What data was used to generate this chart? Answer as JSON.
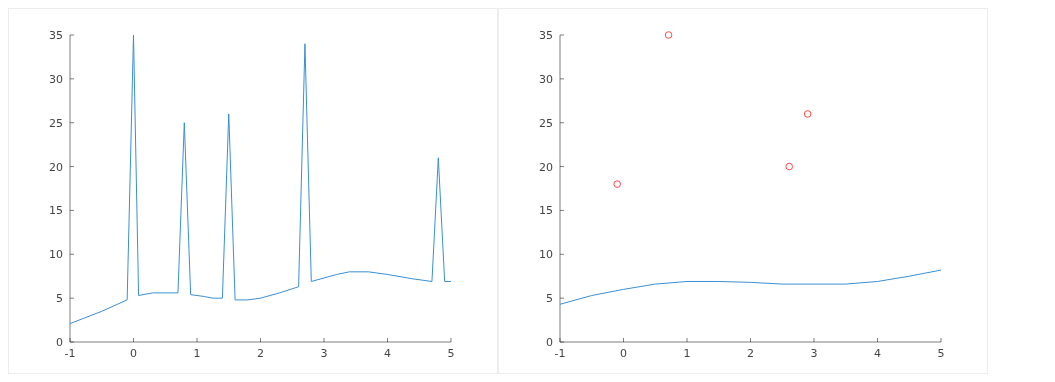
{
  "chart_data": [
    {
      "type": "line",
      "xlim": [
        -1,
        5
      ],
      "xticks": [
        -1,
        0,
        1,
        2,
        3,
        4,
        5
      ],
      "ylim": [
        0,
        35
      ],
      "yticks": [
        0,
        5,
        10,
        15,
        20,
        25,
        30,
        35
      ],
      "series": [
        {
          "color": "#3a8fd4",
          "x": [
            -1,
            -0.5,
            -0.1,
            0,
            0.08,
            0.3,
            0.7,
            0.8,
            0.9,
            1.1,
            1.25,
            1.4,
            1.5,
            1.6,
            1.8,
            2,
            2.3,
            2.6,
            2.7,
            2.8,
            3,
            3.2,
            3.4,
            3.7,
            4,
            4.4,
            4.7,
            4.8,
            4.9,
            5
          ],
          "values": [
            2.1,
            3.5,
            4.8,
            35,
            5.3,
            5.6,
            5.6,
            25,
            5.4,
            5.2,
            5,
            5,
            26,
            4.8,
            4.8,
            5,
            5.6,
            6.3,
            34,
            6.9,
            7.3,
            7.7,
            8,
            8,
            7.7,
            7.2,
            6.9,
            21,
            6.9,
            6.9
          ]
        }
      ]
    },
    {
      "type": "line",
      "xlim": [
        -1,
        5
      ],
      "xticks": [
        -1,
        0,
        1,
        2,
        3,
        4,
        5
      ],
      "ylim": [
        0,
        35
      ],
      "yticks": [
        0,
        5,
        10,
        15,
        20,
        25,
        30,
        35
      ],
      "series": [
        {
          "color": "#3a8fd4",
          "x": [
            -1,
            -0.5,
            0,
            0.5,
            1,
            1.5,
            2,
            2.5,
            3,
            3.5,
            4,
            4.5,
            5
          ],
          "values": [
            4.3,
            5.3,
            6,
            6.6,
            6.9,
            6.9,
            6.8,
            6.6,
            6.6,
            6.6,
            6.9,
            7.5,
            8.2
          ]
        },
        {
          "type": "scatter",
          "marker": "circle",
          "color": "#ff4a4a",
          "x": [
            -0.1,
            0.71,
            2.61,
            2.9
          ],
          "values": [
            18,
            35,
            20,
            26
          ]
        }
      ]
    }
  ]
}
